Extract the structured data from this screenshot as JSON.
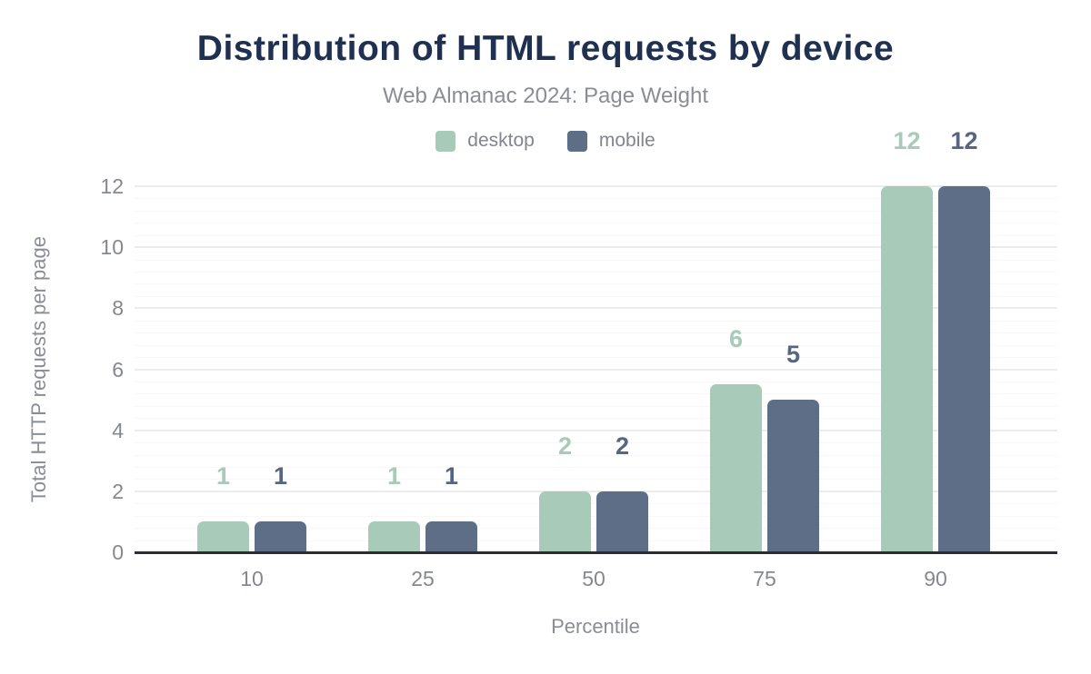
{
  "chart": {
    "title": "Distribution of HTML requests by device",
    "subtitle": "Web Almanac 2024: Page Weight",
    "x_axis_title": "Percentile",
    "y_axis_title": "Total HTTP requests per page"
  },
  "colors": {
    "title": "#203051",
    "subtitle": "#8a8d94",
    "tick_text": "#85888f",
    "axis_line": "#2c2e33",
    "grid_major": "#ececec",
    "grid_minor": "#f7f7f7",
    "desktop": "#a8cab8",
    "mobile": "#5e6e86",
    "desktop_label": "#a8cab8",
    "mobile_label": "#566680"
  },
  "chart_data": {
    "type": "bar",
    "title": "Distribution of HTML requests by device",
    "subtitle": "Web Almanac 2024: Page Weight",
    "xlabel": "Percentile",
    "ylabel": "Total HTTP requests per page",
    "categories": [
      "10",
      "25",
      "50",
      "75",
      "90"
    ],
    "series": [
      {
        "name": "desktop",
        "color": "#a8cab8",
        "label_color": "#a8cab8",
        "values": [
          1,
          1,
          2,
          5.5,
          12
        ],
        "labels": [
          "1",
          "1",
          "2",
          "6",
          "12"
        ]
      },
      {
        "name": "mobile",
        "color": "#5e6e86",
        "label_color": "#566680",
        "values": [
          1,
          1,
          2,
          5,
          12
        ],
        "labels": [
          "1",
          "1",
          "2",
          "5",
          "12"
        ]
      }
    ],
    "ylim": [
      0,
      12
    ],
    "y_ticks": [
      0,
      2,
      4,
      6,
      8,
      10,
      12
    ],
    "minor_grid_step": 0.4,
    "grid": "horizontal-only",
    "legend_position": "top-center"
  }
}
